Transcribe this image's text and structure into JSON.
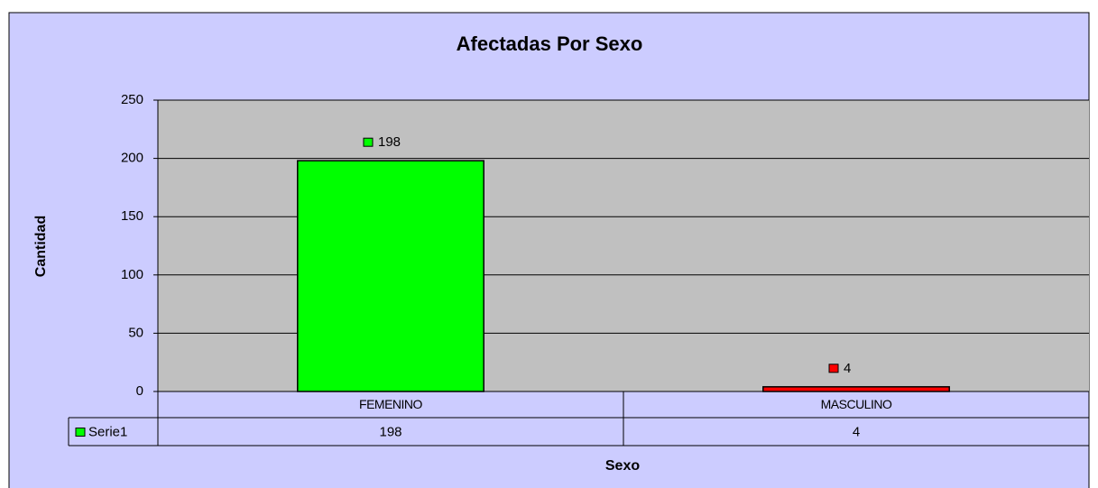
{
  "chart_data": {
    "type": "bar",
    "title": "Afectadas Por Sexo",
    "x_label": "Sexo",
    "y_label": "Cantidad",
    "categories": [
      "FEMENINO",
      "MASCULINO"
    ],
    "series": [
      {
        "name": "Serie1",
        "color": "#00FF00",
        "point_colors": [
          "#00FF00",
          "#FF0000"
        ],
        "values": [
          198,
          4
        ]
      }
    ],
    "ylim": [
      0,
      250
    ],
    "yticks": [
      0,
      50,
      100,
      150,
      200,
      250
    ],
    "grid": true,
    "data_table": true
  }
}
